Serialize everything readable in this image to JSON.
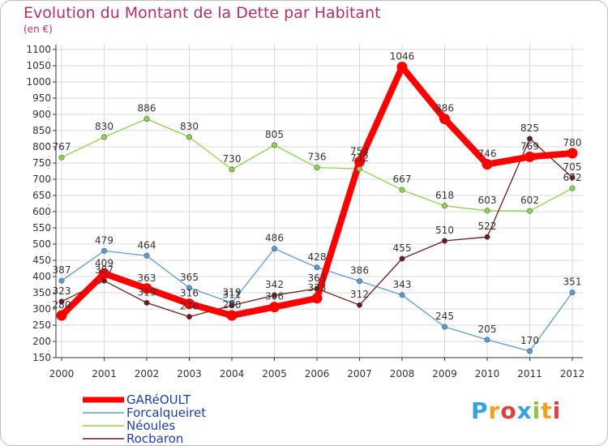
{
  "title": "Evolution du Montant de la Dette par Habitant",
  "unit": "(en €)",
  "logo": {
    "text": "Proxiti"
  },
  "chart_data": {
    "type": "line",
    "title": "Evolution du Montant de la Dette par Habitant",
    "ylabel": "(en €)",
    "xlabel": "",
    "x": [
      "2000",
      "2001",
      "2002",
      "2003",
      "2004",
      "2005",
      "2006",
      "2007",
      "2008",
      "2009",
      "2010",
      "2011",
      "2012"
    ],
    "ylim": [
      150,
      1100
    ],
    "yticks": [
      150,
      200,
      250,
      300,
      350,
      400,
      450,
      500,
      550,
      600,
      650,
      700,
      750,
      800,
      850,
      900,
      950,
      1000,
      1050,
      1100
    ],
    "grid": true,
    "legend_position": "bottom-left",
    "series": [
      {
        "name": "GARéOULT",
        "color": "#ff0000",
        "values": [
          280,
          409,
          363,
          316,
          280,
          306,
          333,
          754,
          1046,
          886,
          746,
          769,
          780
        ]
      },
      {
        "name": "Forcalqueiret",
        "color": "#5b9bd5",
        "values": [
          387,
          479,
          464,
          365,
          319,
          486,
          428,
          386,
          343,
          245,
          205,
          170,
          351
        ]
      },
      {
        "name": "Néoules",
        "color": "#8ed44b",
        "values": [
          767,
          830,
          886,
          830,
          730,
          805,
          736,
          732,
          667,
          618,
          603,
          602,
          672
        ]
      },
      {
        "name": "Rocbaron",
        "color": "#6b1a1a",
        "values": [
          323,
          387,
          319,
          276,
          311,
          342,
          363,
          312,
          455,
          510,
          522,
          825,
          705
        ]
      }
    ]
  }
}
